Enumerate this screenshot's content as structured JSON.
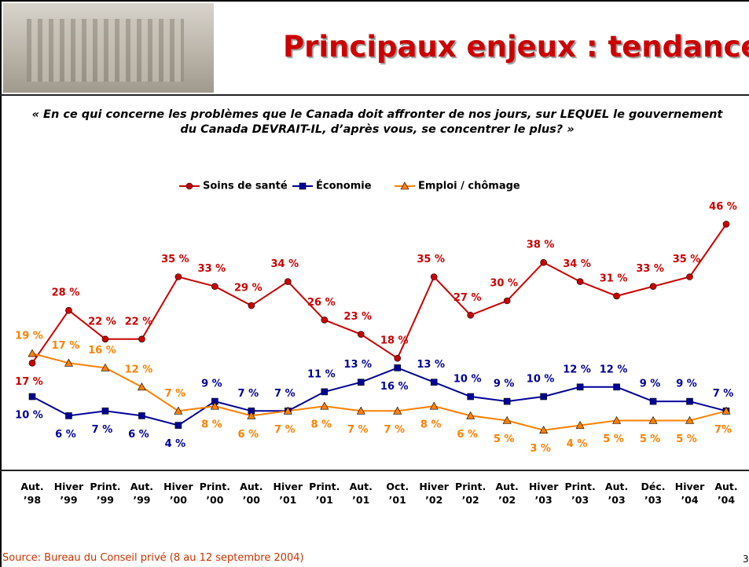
{
  "header": {
    "title": "Principaux enjeux : tendance"
  },
  "question": "« En ce qui concerne les problèmes que le Canada doit affronter de nos jours, sur LEQUEL le gouvernement du Canada DEVRAIT-IL, d’après vous, se concentrer le plus? »",
  "chart_data": {
    "type": "line",
    "categories": [
      "Aut. ’98",
      "Hiver ’99",
      "Print. ’99",
      "Aut. ’99",
      "Hiver ’00",
      "Print. ’00",
      "Aut. ’00",
      "Hiver ’01",
      "Print. ’01",
      "Aut. ’01",
      "Oct. ’01",
      "Hiver ’02",
      "Print. ’02",
      "Aut. ’02",
      "Hiver ’03",
      "Print. ’03",
      "Aut. ’03",
      "Déc. ’03",
      "Hiver ’04",
      "Aut. ’04"
    ],
    "series": [
      {
        "name": "Soins de santé",
        "color": "#cc0000",
        "marker": "circle",
        "values": [
          17,
          28,
          22,
          22,
          35,
          33,
          29,
          34,
          26,
          23,
          18,
          35,
          27,
          30,
          38,
          34,
          31,
          33,
          35,
          46
        ],
        "value_labels": [
          "17 %",
          "28 %",
          "22 %",
          "22 %",
          "35 %",
          "33 %",
          "29 %",
          "34 %",
          "26 %",
          "23 %",
          "18 %",
          "35 %",
          "27 %",
          "30 %",
          "38 %",
          "34 %",
          "31 %",
          "33 %",
          "35 %",
          "46 %"
        ]
      },
      {
        "name": "Économie",
        "color": "#000099",
        "marker": "square",
        "values": [
          10,
          6,
          7,
          6,
          4,
          9,
          7,
          7,
          11,
          13,
          16,
          13,
          10,
          9,
          10,
          12,
          12,
          9,
          9,
          7
        ],
        "value_labels": [
          "10 %",
          "6 %",
          "7 %",
          "6 %",
          "4 %",
          "9 %",
          "7 %",
          "7 %",
          "11 %",
          "13 %",
          "16 %",
          "13 %",
          "10 %",
          "9 %",
          "10 %",
          "12 %",
          "12 %",
          "9 %",
          "9 %",
          "7 %"
        ]
      },
      {
        "name": "Emploi / chômage",
        "color": "#ff8000",
        "marker": "triangle",
        "values": [
          19,
          17,
          16,
          12,
          7,
          8,
          6,
          7,
          8,
          7,
          7,
          8,
          6,
          5,
          3,
          4,
          5,
          5,
          5,
          7
        ],
        "value_labels": [
          "19 %",
          "17 %",
          "16 %",
          "12 %",
          "7 %",
          "8 %",
          "6 %",
          "7 %",
          "8 %",
          "7 %",
          "7 %",
          "8 %",
          "6 %",
          "5 %",
          "3 %",
          "4 %",
          "5 %",
          "5 %",
          "5 %",
          "7%"
        ]
      }
    ],
    "ylim": [
      0,
      50
    ],
    "legend": "top"
  },
  "footer": {
    "source": "Source: Bureau du Conseil privé (8 au 12 septembre 2004)",
    "page": "3"
  }
}
